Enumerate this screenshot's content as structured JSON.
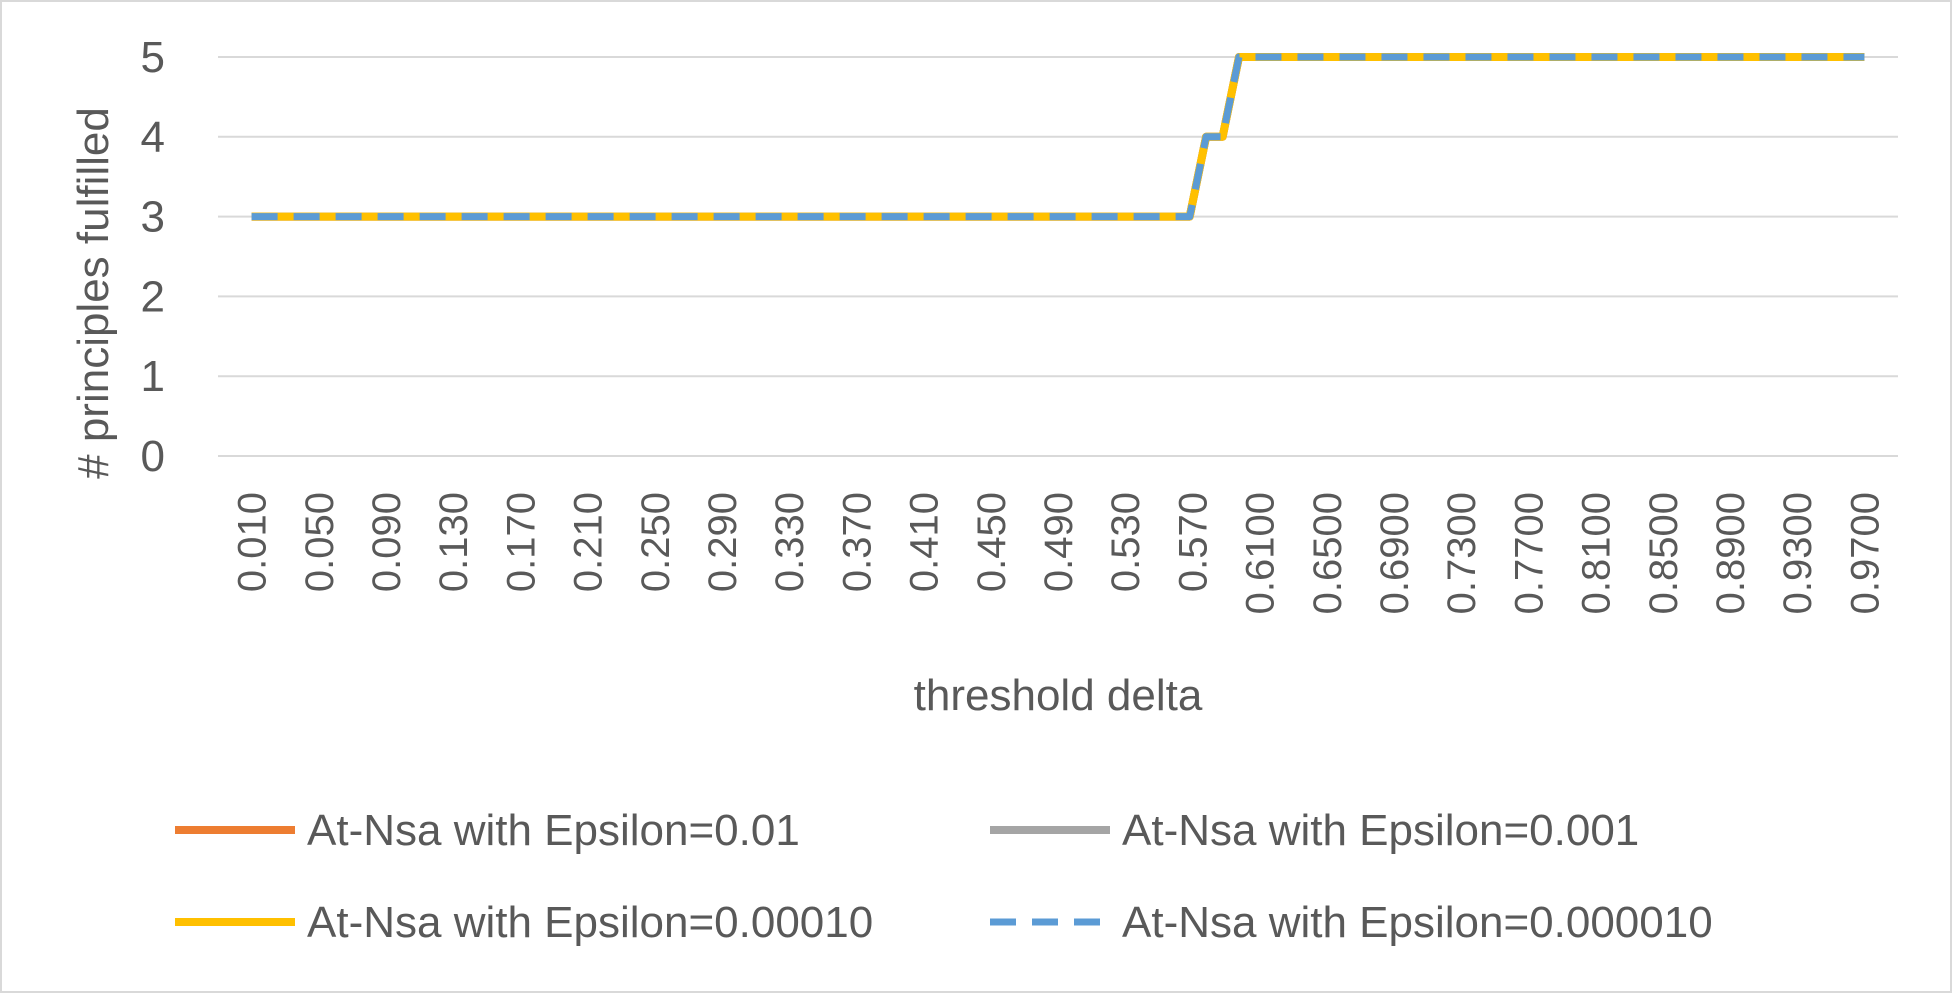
{
  "chart_data": {
    "type": "line",
    "title": "",
    "xlabel": "threshold delta",
    "ylabel": "# principles fulfilled",
    "ylim": [
      0,
      5
    ],
    "yticks": [
      "0",
      "1",
      "2",
      "3",
      "4",
      "5"
    ],
    "grid": true,
    "legend_position": "bottom",
    "x_ticks": [
      "0.010",
      "0.050",
      "0.090",
      "0.130",
      "0.170",
      "0.210",
      "0.250",
      "0.290",
      "0.330",
      "0.370",
      "0.410",
      "0.450",
      "0.490",
      "0.530",
      "0.570",
      "0.6100",
      "0.6500",
      "0.6900",
      "0.7300",
      "0.7700",
      "0.8100",
      "0.8500",
      "0.8900",
      "0.9300",
      "0.9700"
    ],
    "x_range": [
      0.01,
      0.99
    ],
    "series": [
      {
        "name": "At-Nsa with Epsilon=0.01",
        "color": "#ED7D31",
        "style": "solid",
        "x": [
          0.01,
          0.58,
          0.59,
          0.6,
          0.61,
          0.99
        ],
        "y": [
          3,
          3,
          4,
          4,
          5,
          5
        ]
      },
      {
        "name": "At-Nsa with Epsilon=0.001",
        "color": "#A5A5A5",
        "style": "solid",
        "x": [
          0.01,
          0.58,
          0.59,
          0.6,
          0.61,
          0.99
        ],
        "y": [
          3,
          3,
          4,
          4,
          5,
          5
        ]
      },
      {
        "name": "At-Nsa with Epsilon=0.00010",
        "color": "#FFC000",
        "style": "solid",
        "x": [
          0.01,
          0.58,
          0.59,
          0.6,
          0.61,
          0.99
        ],
        "y": [
          3,
          3,
          4,
          4,
          5,
          5
        ]
      },
      {
        "name": "At-Nsa with Epsilon=0.000010",
        "color": "#5B9BD5",
        "style": "dashed",
        "x": [
          0.01,
          0.58,
          0.59,
          0.6,
          0.61,
          0.99
        ],
        "y": [
          3,
          3,
          4,
          4,
          5,
          5
        ]
      }
    ]
  }
}
